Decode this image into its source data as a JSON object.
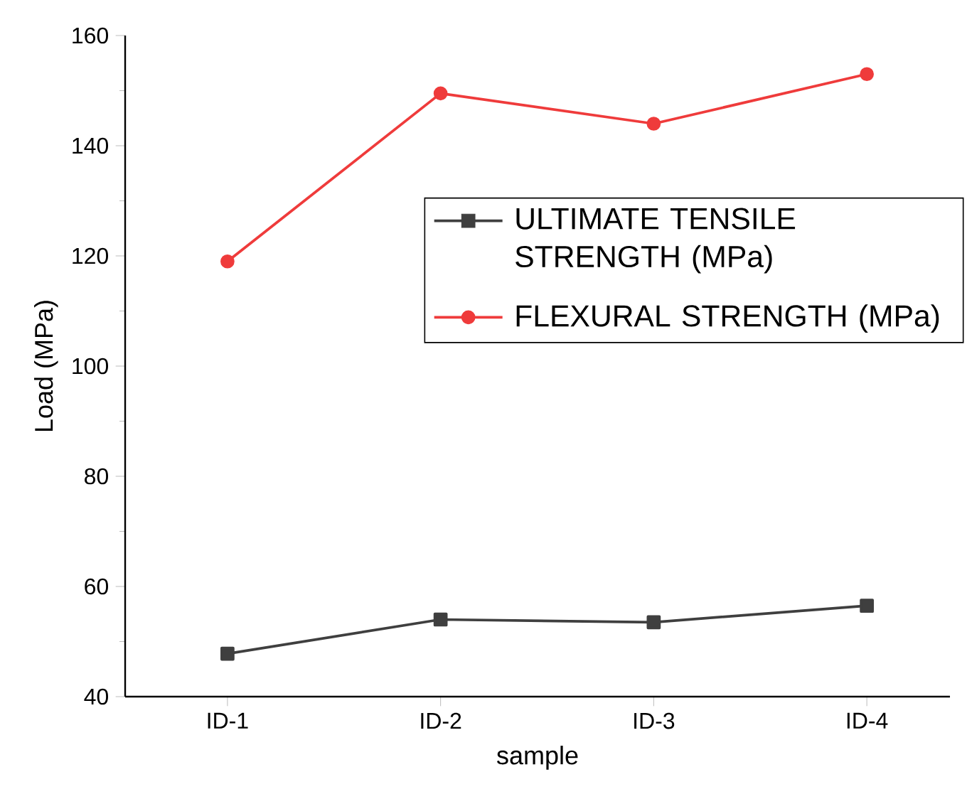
{
  "chart_data": {
    "type": "line",
    "xlabel": "sample",
    "ylabel": "Load (MPa)",
    "categories": [
      "ID-1",
      "ID-2",
      "ID-3",
      "ID-4"
    ],
    "series": [
      {
        "name": "ULTIMATE TENSILE STRENGTH (MPa)",
        "color": "#3f3f3f",
        "marker": "square",
        "values": [
          47.8,
          54,
          53.5,
          56.5
        ]
      },
      {
        "name": "FLEXURAL STRENGTH (MPa)",
        "color": "#ef3b3b",
        "marker": "circle",
        "values": [
          119,
          149.5,
          144,
          153
        ]
      }
    ],
    "ylim": [
      40,
      160
    ],
    "yticks": [
      40,
      60,
      80,
      100,
      120,
      140,
      160
    ],
    "legend": "right",
    "grid": false,
    "line_style": "solid"
  }
}
